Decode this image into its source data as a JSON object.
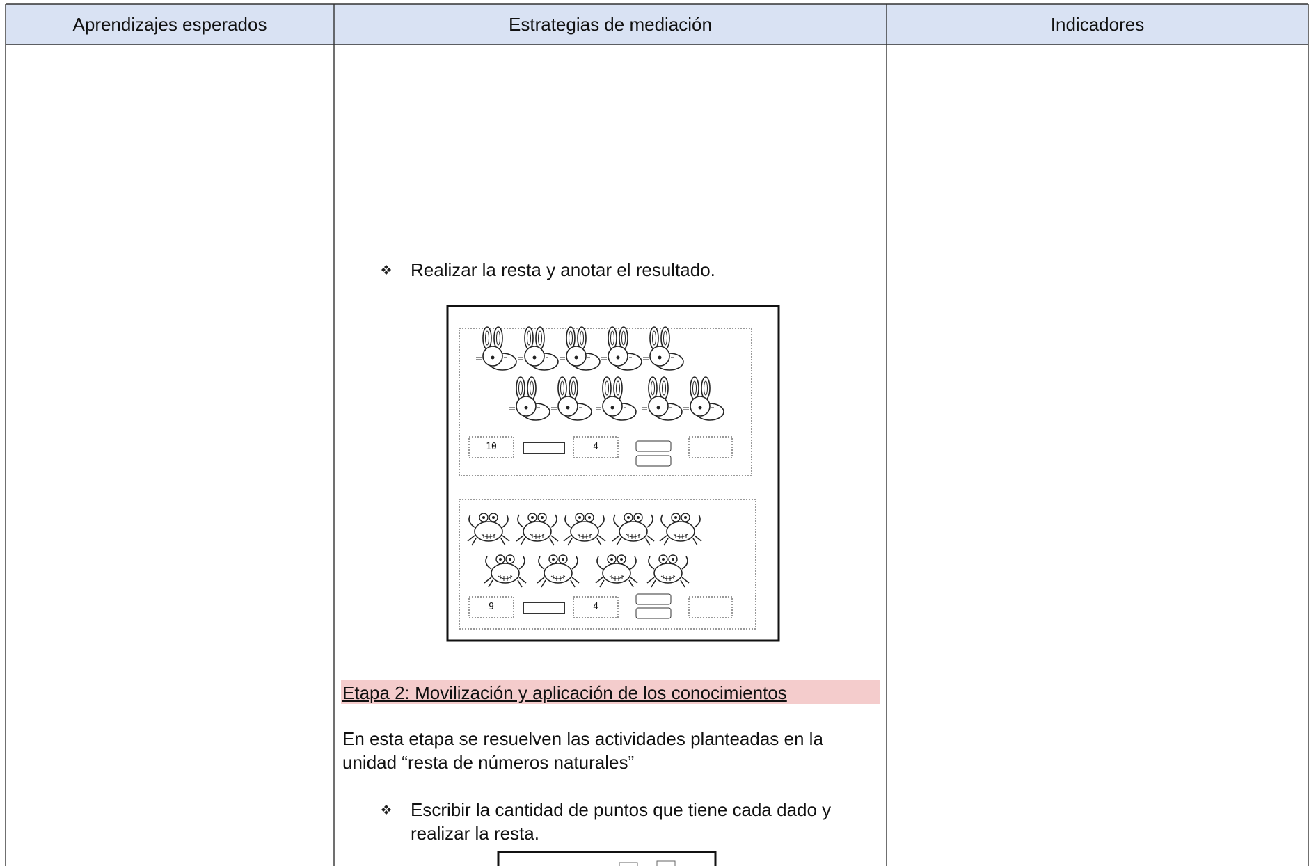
{
  "header": {
    "columns": [
      "Aprendizajes esperados",
      "Estrategias de mediación",
      "Indicadores"
    ]
  },
  "content": {
    "bullets": [
      "Realizar la resta y anotar el resultado.",
      "Escribir la cantidad de puntos que tiene cada dado y realizar la resta."
    ],
    "worksheet": {
      "rows": [
        {
          "boxes": [
            "10",
            "4"
          ]
        },
        {
          "boxes": [
            "9",
            "4"
          ]
        }
      ]
    },
    "stage_heading": "Etapa 2: Movilización y aplicación de los conocimientos",
    "paragraph": "En esta etapa se resuelven las actividades planteadas en la unidad “resta de números naturales”"
  }
}
